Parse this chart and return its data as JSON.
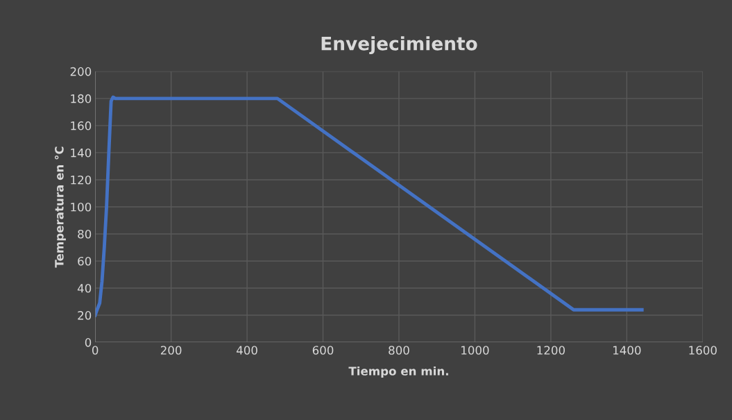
{
  "chart_data": {
    "type": "line",
    "title": "Envejecimiento",
    "xlabel": "Tiempo en min.",
    "ylabel": "Temperatura en °C",
    "series": [
      {
        "color": "#4472c4",
        "x": [
          0,
          5,
          12,
          18,
          24,
          30,
          36,
          42,
          47,
          53,
          60,
          480,
          1260,
          1440
        ],
        "values": [
          20,
          24,
          29,
          45,
          70,
          100,
          140,
          178,
          181,
          180,
          180,
          180,
          24,
          24
        ]
      }
    ],
    "xlim": [
      0,
      1600
    ],
    "xticks": [
      0,
      200,
      400,
      600,
      800,
      1000,
      1200,
      1400,
      1600
    ],
    "ylim": [
      0,
      200
    ],
    "yticks": [
      0,
      20,
      40,
      60,
      80,
      100,
      120,
      140,
      160,
      180,
      200
    ],
    "grid": true,
    "legend": false,
    "marker": "none",
    "line_style": "solid"
  }
}
